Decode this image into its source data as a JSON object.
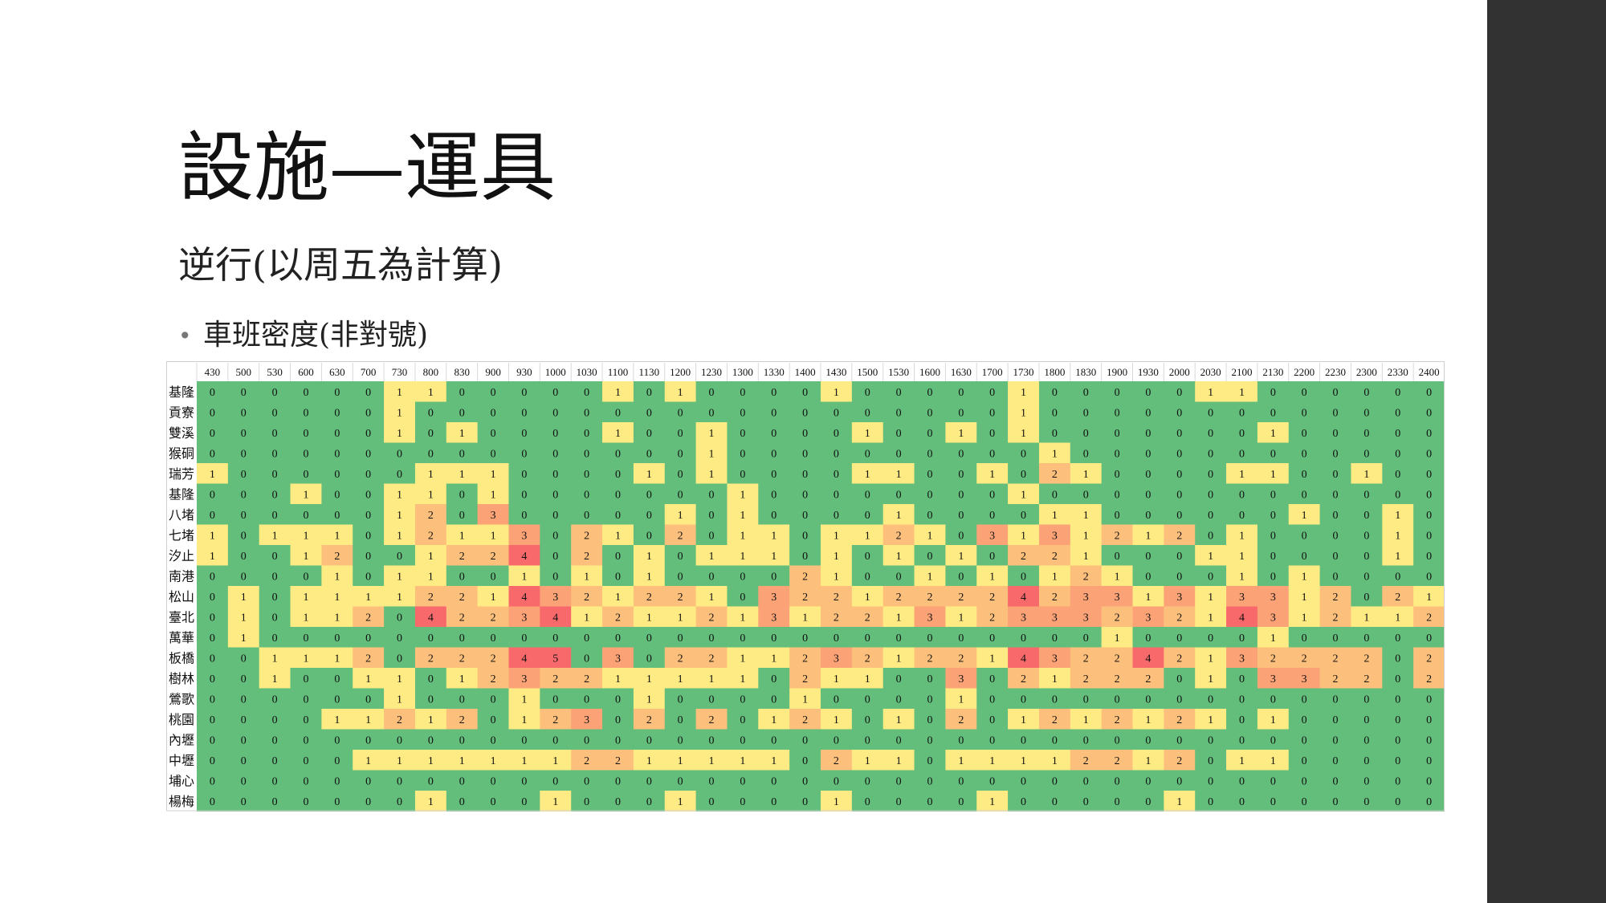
{
  "slide": {
    "title": "設施—運具",
    "subtitle": "逆行(以周五為計算)",
    "bullet_marker": "•",
    "bullet_text": "車班密度(非對號)"
  },
  "colors": {
    "level0": "#63be7b",
    "level1": "#ffeb84",
    "level2": "#fdc07c",
    "level3": "#fba276",
    "level4": "#f8696b",
    "sidebar": "#323232",
    "header_bg": "#ffffff"
  },
  "chart_data": {
    "type": "heatmap",
    "title": "",
    "xlabel": "",
    "ylabel": "",
    "legend": "none",
    "x": [
      "430",
      "500",
      "530",
      "600",
      "630",
      "700",
      "730",
      "800",
      "830",
      "900",
      "930",
      "1000",
      "1030",
      "1100",
      "1130",
      "1200",
      "1230",
      "1300",
      "1330",
      "1400",
      "1430",
      "1500",
      "1530",
      "1600",
      "1630",
      "1700",
      "1730",
      "1800",
      "1830",
      "1900",
      "1930",
      "2000",
      "2030",
      "2100",
      "2130",
      "2200",
      "2230",
      "2300",
      "2330",
      "2400"
    ],
    "y": [
      "基隆",
      "貢寮",
      "雙溪",
      "猴硐",
      "瑞芳",
      "基隆",
      "八堵",
      "七堵",
      "汐止",
      "南港",
      "松山",
      "臺北",
      "萬華",
      "板橋",
      "樹林",
      "鶯歌",
      "桃園",
      "內壢",
      "中壢",
      "埔心",
      "楊梅"
    ],
    "values": [
      [
        0,
        0,
        0,
        0,
        0,
        0,
        1,
        1,
        0,
        0,
        0,
        0,
        0,
        1,
        0,
        1,
        0,
        0,
        0,
        0,
        1,
        0,
        0,
        0,
        0,
        0,
        1,
        0,
        0,
        0,
        0,
        0,
        1,
        1,
        0,
        0,
        0,
        0,
        0,
        0
      ],
      [
        0,
        0,
        0,
        0,
        0,
        0,
        1,
        0,
        0,
        0,
        0,
        0,
        0,
        0,
        0,
        0,
        0,
        0,
        0,
        0,
        0,
        0,
        0,
        0,
        0,
        0,
        1,
        0,
        0,
        0,
        0,
        0,
        0,
        0,
        0,
        0,
        0,
        0,
        0,
        0
      ],
      [
        0,
        0,
        0,
        0,
        0,
        0,
        1,
        0,
        1,
        0,
        0,
        0,
        0,
        1,
        0,
        0,
        1,
        0,
        0,
        0,
        0,
        1,
        0,
        0,
        1,
        0,
        1,
        0,
        0,
        0,
        0,
        0,
        0,
        0,
        1,
        0,
        0,
        0,
        0,
        0
      ],
      [
        0,
        0,
        0,
        0,
        0,
        0,
        0,
        0,
        0,
        0,
        0,
        0,
        0,
        0,
        0,
        0,
        1,
        0,
        0,
        0,
        0,
        0,
        0,
        0,
        0,
        0,
        0,
        1,
        0,
        0,
        0,
        0,
        0,
        0,
        0,
        0,
        0,
        0,
        0,
        0
      ],
      [
        1,
        0,
        0,
        0,
        0,
        0,
        0,
        1,
        1,
        1,
        0,
        0,
        0,
        0,
        1,
        0,
        1,
        0,
        0,
        0,
        0,
        1,
        1,
        0,
        0,
        1,
        0,
        2,
        1,
        0,
        0,
        0,
        0,
        1,
        1,
        0,
        0,
        1,
        0,
        0
      ],
      [
        0,
        0,
        0,
        1,
        0,
        0,
        1,
        1,
        0,
        1,
        0,
        0,
        0,
        0,
        0,
        0,
        0,
        1,
        0,
        0,
        0,
        0,
        0,
        0,
        0,
        0,
        1,
        0,
        0,
        0,
        0,
        0,
        0,
        0,
        0,
        0,
        0,
        0,
        0,
        0
      ],
      [
        0,
        0,
        0,
        0,
        0,
        0,
        1,
        2,
        0,
        3,
        0,
        0,
        0,
        0,
        0,
        1,
        0,
        1,
        0,
        0,
        0,
        0,
        1,
        0,
        0,
        0,
        0,
        1,
        1,
        0,
        0,
        0,
        0,
        0,
        0,
        1,
        0,
        0,
        1,
        0
      ],
      [
        1,
        0,
        1,
        1,
        1,
        0,
        1,
        2,
        1,
        1,
        3,
        0,
        2,
        1,
        0,
        2,
        0,
        1,
        1,
        0,
        1,
        1,
        2,
        1,
        0,
        3,
        1,
        3,
        1,
        2,
        1,
        2,
        0,
        1,
        0,
        0,
        0,
        0,
        1,
        0
      ],
      [
        1,
        0,
        0,
        1,
        2,
        0,
        0,
        1,
        2,
        2,
        4,
        0,
        2,
        0,
        1,
        0,
        1,
        1,
        1,
        0,
        1,
        0,
        1,
        0,
        1,
        0,
        2,
        2,
        1,
        0,
        0,
        0,
        1,
        1,
        0,
        0,
        0,
        0,
        1,
        0
      ],
      [
        0,
        0,
        0,
        0,
        1,
        0,
        1,
        1,
        0,
        0,
        1,
        0,
        1,
        0,
        1,
        0,
        0,
        0,
        0,
        2,
        1,
        0,
        0,
        1,
        0,
        1,
        0,
        1,
        2,
        1,
        0,
        0,
        0,
        1,
        0,
        1,
        0,
        0,
        0,
        0
      ],
      [
        0,
        1,
        0,
        1,
        1,
        1,
        1,
        2,
        2,
        1,
        4,
        3,
        2,
        1,
        2,
        2,
        1,
        0,
        3,
        2,
        2,
        1,
        2,
        2,
        2,
        2,
        4,
        2,
        3,
        3,
        1,
        3,
        1,
        3,
        3,
        1,
        2,
        0,
        2,
        1
      ],
      [
        0,
        1,
        0,
        1,
        1,
        2,
        0,
        4,
        2,
        2,
        3,
        4,
        1,
        2,
        1,
        1,
        2,
        1,
        3,
        1,
        2,
        2,
        1,
        3,
        1,
        2,
        3,
        3,
        3,
        2,
        3,
        2,
        1,
        4,
        3,
        1,
        2,
        1,
        1,
        2
      ],
      [
        0,
        1,
        0,
        0,
        0,
        0,
        0,
        0,
        0,
        0,
        0,
        0,
        0,
        0,
        0,
        0,
        0,
        0,
        0,
        0,
        0,
        0,
        0,
        0,
        0,
        0,
        0,
        0,
        0,
        1,
        0,
        0,
        0,
        0,
        1,
        0,
        0,
        0,
        0,
        0
      ],
      [
        0,
        0,
        1,
        1,
        1,
        2,
        0,
        2,
        2,
        2,
        4,
        5,
        0,
        3,
        0,
        2,
        2,
        1,
        1,
        2,
        3,
        2,
        1,
        2,
        2,
        1,
        4,
        3,
        2,
        2,
        4,
        2,
        1,
        3,
        2,
        2,
        2,
        2,
        0,
        2
      ],
      [
        0,
        0,
        1,
        0,
        0,
        1,
        1,
        0,
        1,
        2,
        3,
        2,
        2,
        1,
        1,
        1,
        1,
        1,
        0,
        2,
        1,
        1,
        0,
        0,
        3,
        0,
        2,
        1,
        2,
        2,
        2,
        0,
        1,
        0,
        3,
        3,
        2,
        2,
        0,
        2
      ],
      [
        0,
        0,
        0,
        0,
        0,
        0,
        1,
        0,
        0,
        0,
        1,
        0,
        0,
        0,
        1,
        0,
        0,
        0,
        0,
        1,
        0,
        0,
        0,
        0,
        1,
        0,
        0,
        0,
        0,
        0,
        0,
        0,
        0,
        0,
        0,
        0,
        0,
        0,
        0,
        0
      ],
      [
        0,
        0,
        0,
        0,
        1,
        1,
        2,
        1,
        2,
        0,
        1,
        2,
        3,
        0,
        2,
        0,
        2,
        0,
        1,
        2,
        1,
        0,
        1,
        0,
        2,
        0,
        1,
        2,
        1,
        2,
        1,
        2,
        1,
        0,
        1,
        0,
        0,
        0,
        0,
        0
      ],
      [
        0,
        0,
        0,
        0,
        0,
        0,
        0,
        0,
        0,
        0,
        0,
        0,
        0,
        0,
        0,
        0,
        0,
        0,
        0,
        0,
        0,
        0,
        0,
        0,
        0,
        0,
        0,
        0,
        0,
        0,
        0,
        0,
        0,
        0,
        0,
        0,
        0,
        0,
        0,
        0
      ],
      [
        0,
        0,
        0,
        0,
        0,
        1,
        1,
        1,
        1,
        1,
        1,
        1,
        2,
        2,
        1,
        1,
        1,
        1,
        1,
        0,
        2,
        1,
        1,
        0,
        1,
        1,
        1,
        1,
        2,
        2,
        1,
        2,
        0,
        1,
        1,
        0,
        0,
        0,
        0,
        0
      ],
      [
        0,
        0,
        0,
        0,
        0,
        0,
        0,
        0,
        0,
        0,
        0,
        0,
        0,
        0,
        0,
        0,
        0,
        0,
        0,
        0,
        0,
        0,
        0,
        0,
        0,
        0,
        0,
        0,
        0,
        0,
        0,
        0,
        0,
        0,
        0,
        0,
        0,
        0,
        0,
        0
      ],
      [
        0,
        0,
        0,
        0,
        0,
        0,
        0,
        1,
        0,
        0,
        0,
        1,
        0,
        0,
        0,
        1,
        0,
        0,
        0,
        0,
        1,
        0,
        0,
        0,
        0,
        1,
        0,
        0,
        0,
        0,
        0,
        1,
        0,
        0,
        0,
        0,
        0,
        0,
        0,
        0
      ]
    ]
  }
}
